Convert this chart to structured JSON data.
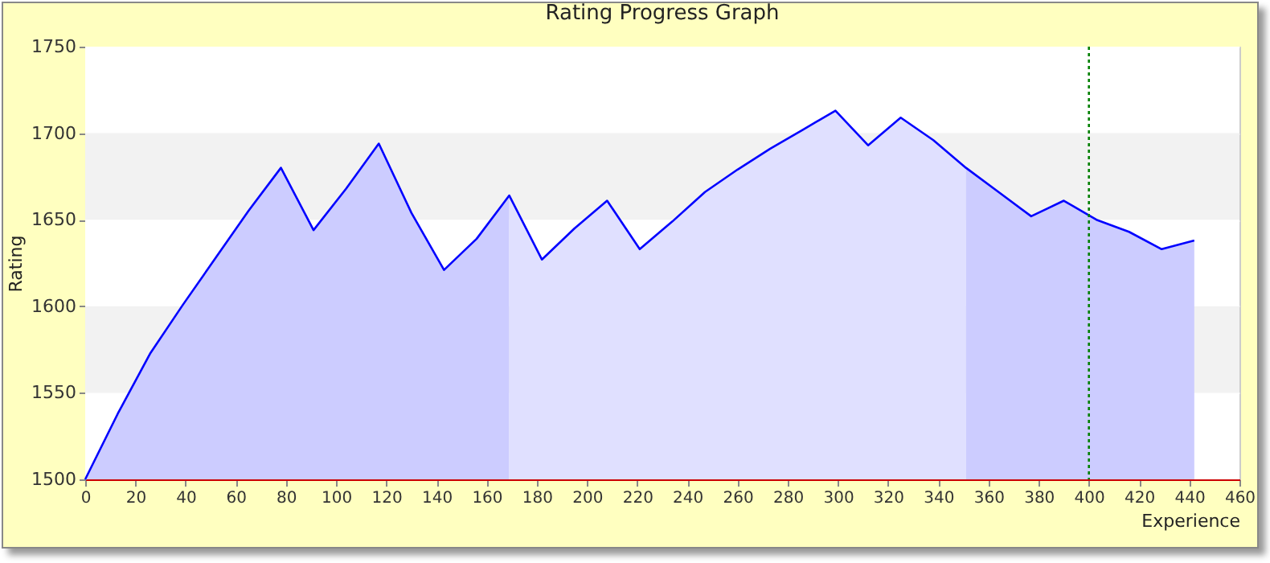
{
  "chart_data": {
    "type": "area",
    "title": "Rating Progress Graph",
    "xlabel": "Experience",
    "ylabel": "Rating",
    "xlim": [
      0,
      460
    ],
    "xticks": [
      0,
      20,
      40,
      60,
      80,
      100,
      120,
      140,
      160,
      180,
      200,
      220,
      240,
      260,
      280,
      300,
      320,
      340,
      360,
      380,
      400,
      420,
      440,
      460
    ],
    "ylim": [
      1500,
      1750
    ],
    "yticks": [
      1500,
      1550,
      1600,
      1650,
      1700,
      1750
    ],
    "grid": "y",
    "marker": "none",
    "series": [
      {
        "color": "#ccccff",
        "x": [
          0,
          13,
          26,
          39,
          52,
          65,
          78,
          91,
          104,
          117,
          130,
          143,
          156,
          169
        ],
        "values": [
          1500,
          1538,
          1573,
          1601,
          1628,
          1655,
          1680,
          1644,
          1668,
          1694,
          1654,
          1621,
          1639,
          1664
        ]
      },
      {
        "color": "#e0e0ff",
        "x": [
          169,
          182,
          195,
          208,
          221,
          234,
          247,
          260,
          273,
          286,
          299,
          312,
          325,
          338,
          351
        ],
        "values": [
          1664,
          1627,
          1645,
          1661,
          1633,
          1649,
          1666,
          1679,
          1691,
          1702,
          1713,
          1693,
          1709,
          1696,
          1680
        ]
      },
      {
        "color": "#ccccff",
        "x": [
          351,
          364,
          377,
          390,
          403,
          416,
          429,
          442
        ],
        "values": [
          1680,
          1666,
          1652,
          1661,
          1650,
          1643,
          1633,
          1638
        ]
      },
      {
        "type": "line",
        "color": "#0000ff",
        "line_style": "solid",
        "x": [
          0,
          13,
          26,
          39,
          52,
          65,
          78,
          91,
          104,
          117,
          130,
          143,
          156,
          169,
          182,
          195,
          208,
          221,
          234,
          247,
          260,
          273,
          286,
          299,
          312,
          325,
          338,
          351,
          364,
          377,
          390,
          403,
          416,
          429,
          442
        ],
        "values": [
          1500,
          1538,
          1573,
          1601,
          1628,
          1655,
          1680,
          1644,
          1668,
          1694,
          1654,
          1621,
          1639,
          1664,
          1627,
          1645,
          1661,
          1633,
          1649,
          1666,
          1679,
          1691,
          1702,
          1713,
          1693,
          1709,
          1696,
          1680,
          1666,
          1652,
          1661,
          1650,
          1643,
          1633,
          1638
        ]
      }
    ],
    "bands": [
      {
        "axis": "y",
        "from": 1550,
        "to": 1600,
        "color": "#f2f2f2"
      },
      {
        "axis": "y",
        "from": 1650,
        "to": 1700,
        "color": "#f2f2f2"
      }
    ],
    "ref_lines": [
      {
        "axis": "x",
        "value": 400,
        "color": "#008000",
        "line_style": "dotted"
      }
    ]
  }
}
